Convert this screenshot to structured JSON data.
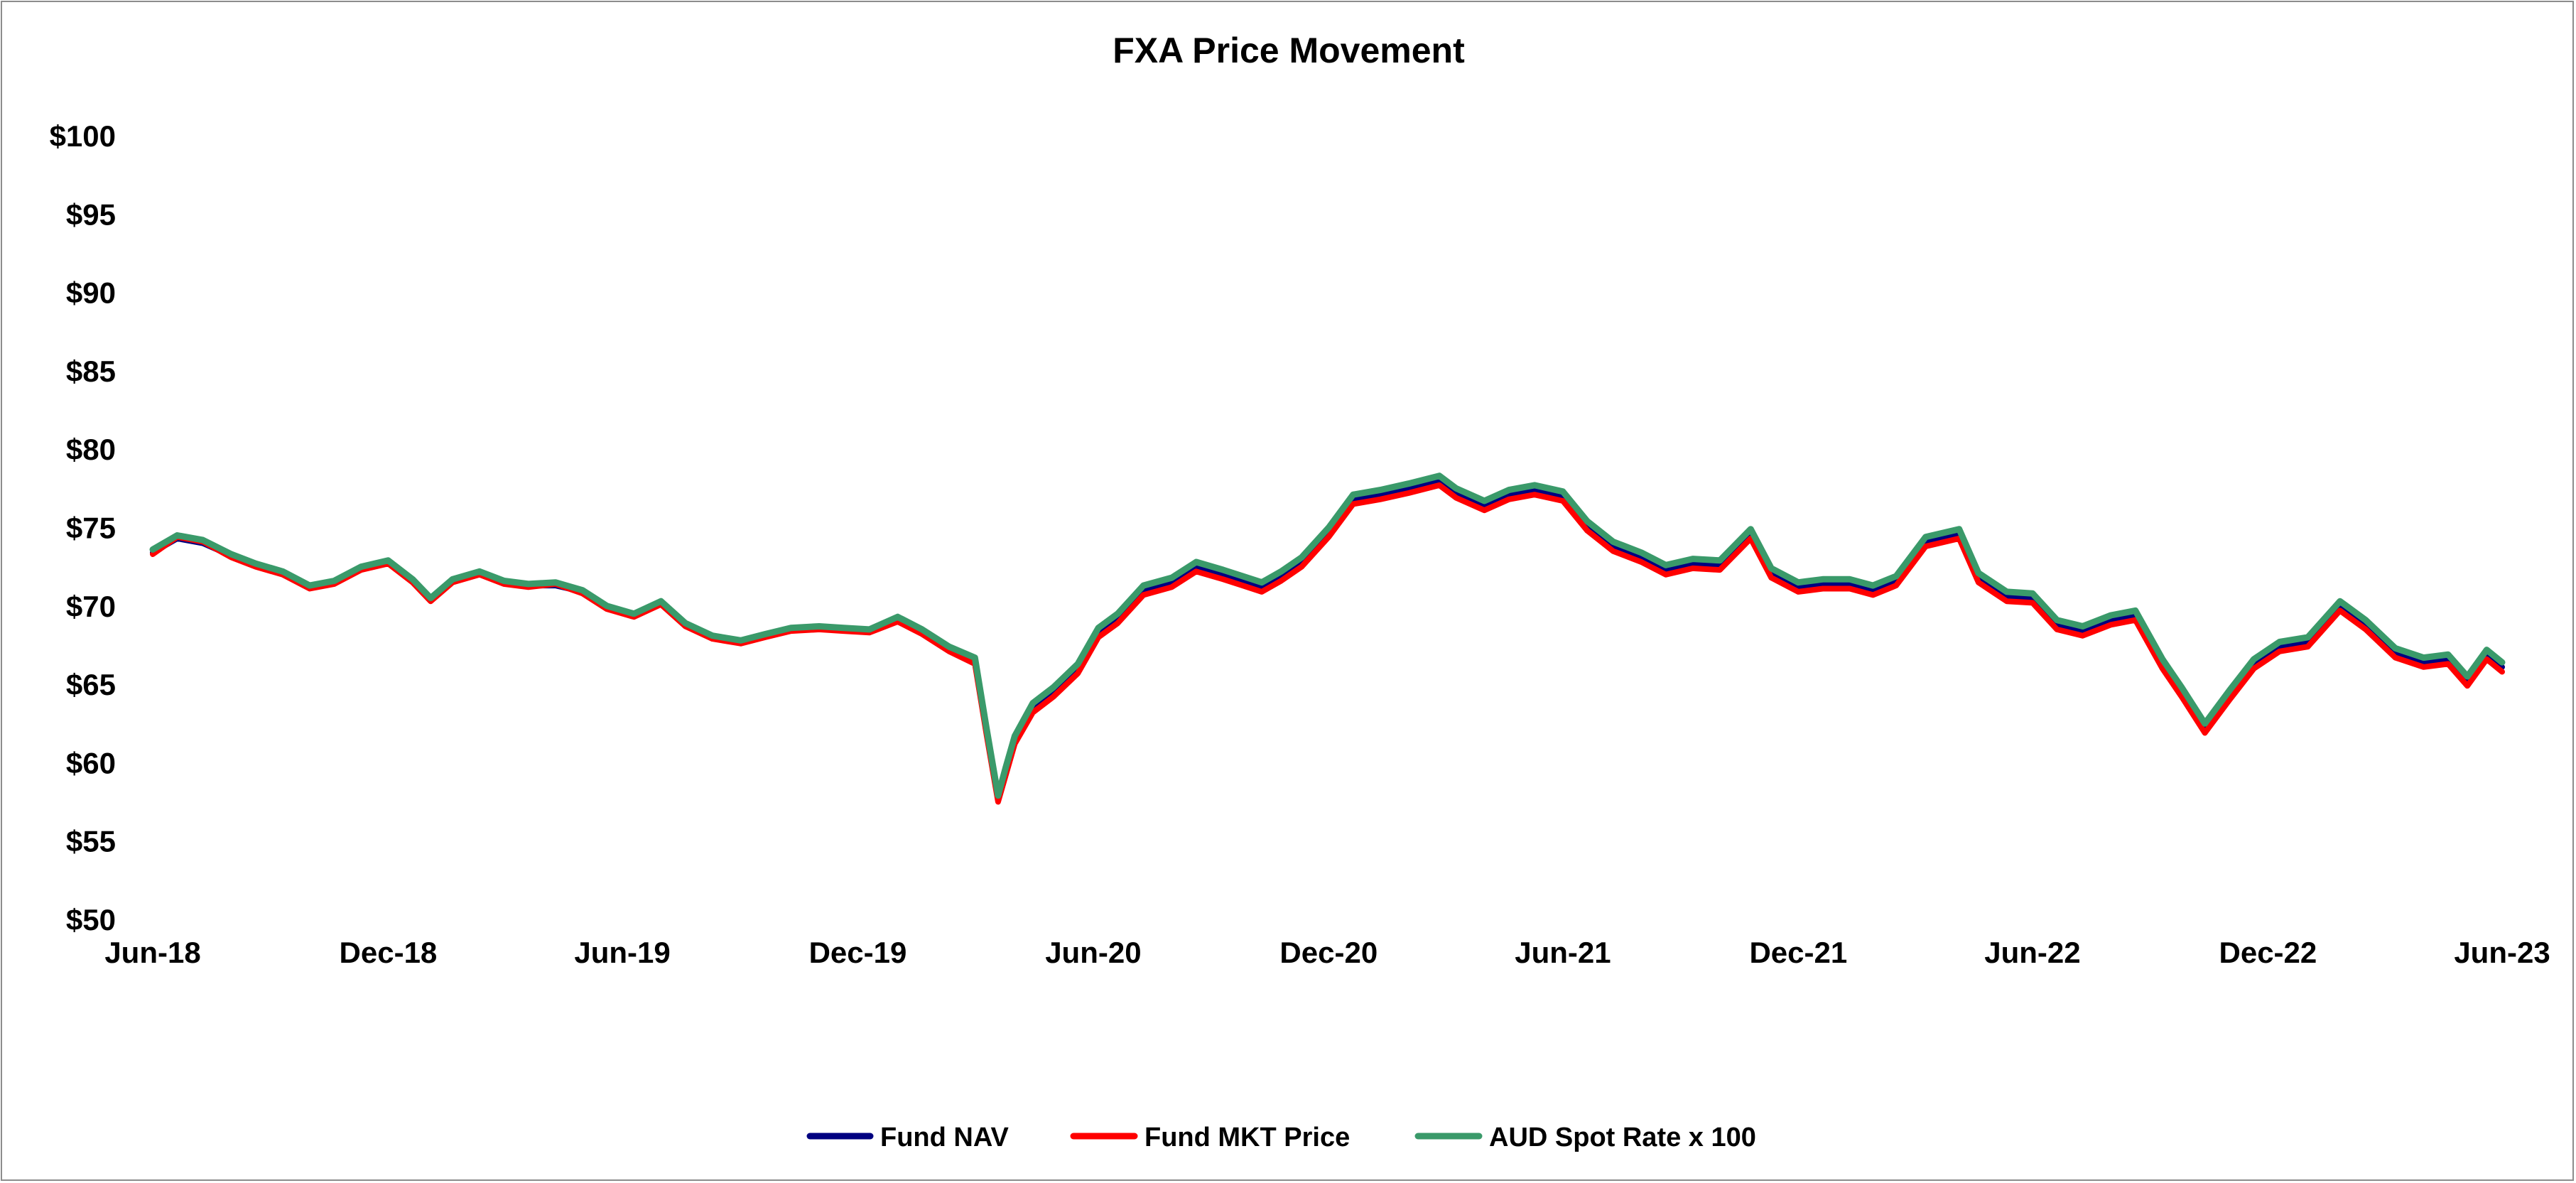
{
  "chart_data": {
    "type": "line",
    "title": "FXA Price Movement",
    "xlabel": "",
    "ylabel": "",
    "ylim": [
      50,
      100
    ],
    "xlim": [
      "2018-06-01",
      "2023-06-01"
    ],
    "y_ticks": [
      50,
      55,
      60,
      65,
      70,
      75,
      80,
      85,
      90,
      95,
      100
    ],
    "y_tick_labels": [
      "$50",
      "$55",
      "$60",
      "$65",
      "$70",
      "$75",
      "$80",
      "$85",
      "$90",
      "$95",
      "$100"
    ],
    "x_tick_labels": [
      {
        "date": "2018-06-01",
        "label": "Jun-18"
      },
      {
        "date": "2018-12-01",
        "label": "Dec-18"
      },
      {
        "date": "2019-06-01",
        "label": "Jun-19"
      },
      {
        "date": "2019-12-01",
        "label": "Dec-19"
      },
      {
        "date": "2020-06-01",
        "label": "Jun-20"
      },
      {
        "date": "2020-12-01",
        "label": "Dec-20"
      },
      {
        "date": "2021-06-01",
        "label": "Jun-21"
      },
      {
        "date": "2021-12-01",
        "label": "Dec-21"
      },
      {
        "date": "2022-06-01",
        "label": "Jun-22"
      },
      {
        "date": "2022-12-01",
        "label": "Dec-22"
      },
      {
        "date": "2023-06-01",
        "label": "Jun-23"
      }
    ],
    "grid": false,
    "legend_position": "bottom-center",
    "x": [
      "2018-06-01",
      "2018-06-20",
      "2018-07-10",
      "2018-08-01",
      "2018-08-20",
      "2018-09-10",
      "2018-10-01",
      "2018-10-20",
      "2018-11-10",
      "2018-12-01",
      "2018-12-20",
      "2019-01-03",
      "2019-01-20",
      "2019-02-10",
      "2019-03-01",
      "2019-03-20",
      "2019-04-10",
      "2019-05-01",
      "2019-05-20",
      "2019-06-10",
      "2019-07-01",
      "2019-07-20",
      "2019-08-10",
      "2019-09-01",
      "2019-09-20",
      "2019-10-10",
      "2019-11-01",
      "2019-11-20",
      "2019-12-10",
      "2020-01-01",
      "2020-01-20",
      "2020-02-10",
      "2020-03-01",
      "2020-03-10",
      "2020-03-19",
      "2020-03-25",
      "2020-04-01",
      "2020-04-15",
      "2020-05-01",
      "2020-05-20",
      "2020-06-05",
      "2020-06-20",
      "2020-07-10",
      "2020-08-01",
      "2020-08-20",
      "2020-09-10",
      "2020-09-25",
      "2020-10-10",
      "2020-10-25",
      "2020-11-10",
      "2020-12-01",
      "2020-12-20",
      "2021-01-10",
      "2021-02-01",
      "2021-02-25",
      "2021-03-10",
      "2021-04-01",
      "2021-04-20",
      "2021-05-10",
      "2021-06-01",
      "2021-06-20",
      "2021-07-10",
      "2021-08-01",
      "2021-08-20",
      "2021-09-10",
      "2021-10-01",
      "2021-10-25",
      "2021-11-10",
      "2021-12-01",
      "2021-12-20",
      "2022-01-10",
      "2022-01-28",
      "2022-02-15",
      "2022-03-10",
      "2022-04-05",
      "2022-04-20",
      "2022-05-12",
      "2022-06-01",
      "2022-06-20",
      "2022-07-10",
      "2022-08-01",
      "2022-08-20",
      "2022-09-10",
      "2022-09-25",
      "2022-10-13",
      "2022-11-01",
      "2022-11-20",
      "2022-12-10",
      "2023-01-01",
      "2023-01-26",
      "2023-02-15",
      "2023-03-10",
      "2023-04-01",
      "2023-04-20",
      "2023-05-05",
      "2023-05-20",
      "2023-06-01"
    ],
    "series": [
      {
        "name": "Fund NAV",
        "color": "#000080",
        "values": [
          73.4,
          74.3,
          74.0,
          73.2,
          72.6,
          72.1,
          71.2,
          71.5,
          72.4,
          72.8,
          71.6,
          70.4,
          71.6,
          72.1,
          71.5,
          71.3,
          71.3,
          70.9,
          69.9,
          69.4,
          70.2,
          68.8,
          68.0,
          67.7,
          68.1,
          68.5,
          68.6,
          68.5,
          68.4,
          69.1,
          68.3,
          67.2,
          66.5,
          62.0,
          57.8,
          59.5,
          61.5,
          63.5,
          64.5,
          66.0,
          68.3,
          69.2,
          71.0,
          71.5,
          72.5,
          72.0,
          71.6,
          71.2,
          71.9,
          72.8,
          74.7,
          76.8,
          77.1,
          77.5,
          78.0,
          77.2,
          76.4,
          77.1,
          77.4,
          77.0,
          75.1,
          73.8,
          73.1,
          72.3,
          72.7,
          72.6,
          74.6,
          72.1,
          71.2,
          71.4,
          71.4,
          71.0,
          71.6,
          74.1,
          74.6,
          71.8,
          70.6,
          70.5,
          68.8,
          68.4,
          69.1,
          69.4,
          66.3,
          64.5,
          62.2,
          64.3,
          66.3,
          67.4,
          67.7,
          70.0,
          68.8,
          67.0,
          66.4,
          66.6,
          65.2,
          66.9,
          66.1
        ]
      },
      {
        "name": "Fund MKT Price",
        "color": "#ff0000",
        "values": [
          73.3,
          74.4,
          74.1,
          73.1,
          72.5,
          72.0,
          71.1,
          71.4,
          72.3,
          72.7,
          71.5,
          70.3,
          71.5,
          72.0,
          71.4,
          71.2,
          71.4,
          70.8,
          69.8,
          69.3,
          70.1,
          68.7,
          67.9,
          67.6,
          68.0,
          68.4,
          68.5,
          68.4,
          68.3,
          69.0,
          68.2,
          67.1,
          66.3,
          61.8,
          57.5,
          59.2,
          61.2,
          63.2,
          64.2,
          65.7,
          68.0,
          68.9,
          70.7,
          71.2,
          72.2,
          71.7,
          71.3,
          70.9,
          71.6,
          72.5,
          74.4,
          76.5,
          76.8,
          77.2,
          77.7,
          76.9,
          76.1,
          76.8,
          77.1,
          76.7,
          74.8,
          73.5,
          72.8,
          72.0,
          72.4,
          72.3,
          74.3,
          71.8,
          70.9,
          71.1,
          71.1,
          70.7,
          71.3,
          73.8,
          74.3,
          71.5,
          70.3,
          70.2,
          68.5,
          68.1,
          68.8,
          69.1,
          66.0,
          64.2,
          61.9,
          64.0,
          66.0,
          67.1,
          67.4,
          69.7,
          68.5,
          66.7,
          66.1,
          66.3,
          64.9,
          66.6,
          65.8
        ]
      },
      {
        "name": "AUD Spot Rate x 100",
        "color": "#3a9a6a",
        "values": [
          73.6,
          74.5,
          74.2,
          73.3,
          72.7,
          72.2,
          71.3,
          71.6,
          72.5,
          72.9,
          71.7,
          70.5,
          71.7,
          72.2,
          71.6,
          71.4,
          71.5,
          71.0,
          70.0,
          69.5,
          70.3,
          68.9,
          68.1,
          67.8,
          68.2,
          68.6,
          68.7,
          68.6,
          68.5,
          69.3,
          68.5,
          67.4,
          66.7,
          62.2,
          57.9,
          59.7,
          61.7,
          63.8,
          64.8,
          66.3,
          68.6,
          69.5,
          71.3,
          71.8,
          72.8,
          72.3,
          71.9,
          71.5,
          72.2,
          73.1,
          75.0,
          77.1,
          77.4,
          77.8,
          78.3,
          77.5,
          76.7,
          77.4,
          77.7,
          77.3,
          75.4,
          74.1,
          73.4,
          72.6,
          73.0,
          72.9,
          74.9,
          72.4,
          71.5,
          71.7,
          71.7,
          71.3,
          71.9,
          74.4,
          74.9,
          72.1,
          70.9,
          70.8,
          69.1,
          68.7,
          69.4,
          69.7,
          66.6,
          64.8,
          62.5,
          64.6,
          66.6,
          67.7,
          68.0,
          70.3,
          69.1,
          67.3,
          66.7,
          66.9,
          65.5,
          67.2,
          66.4
        ]
      }
    ]
  }
}
